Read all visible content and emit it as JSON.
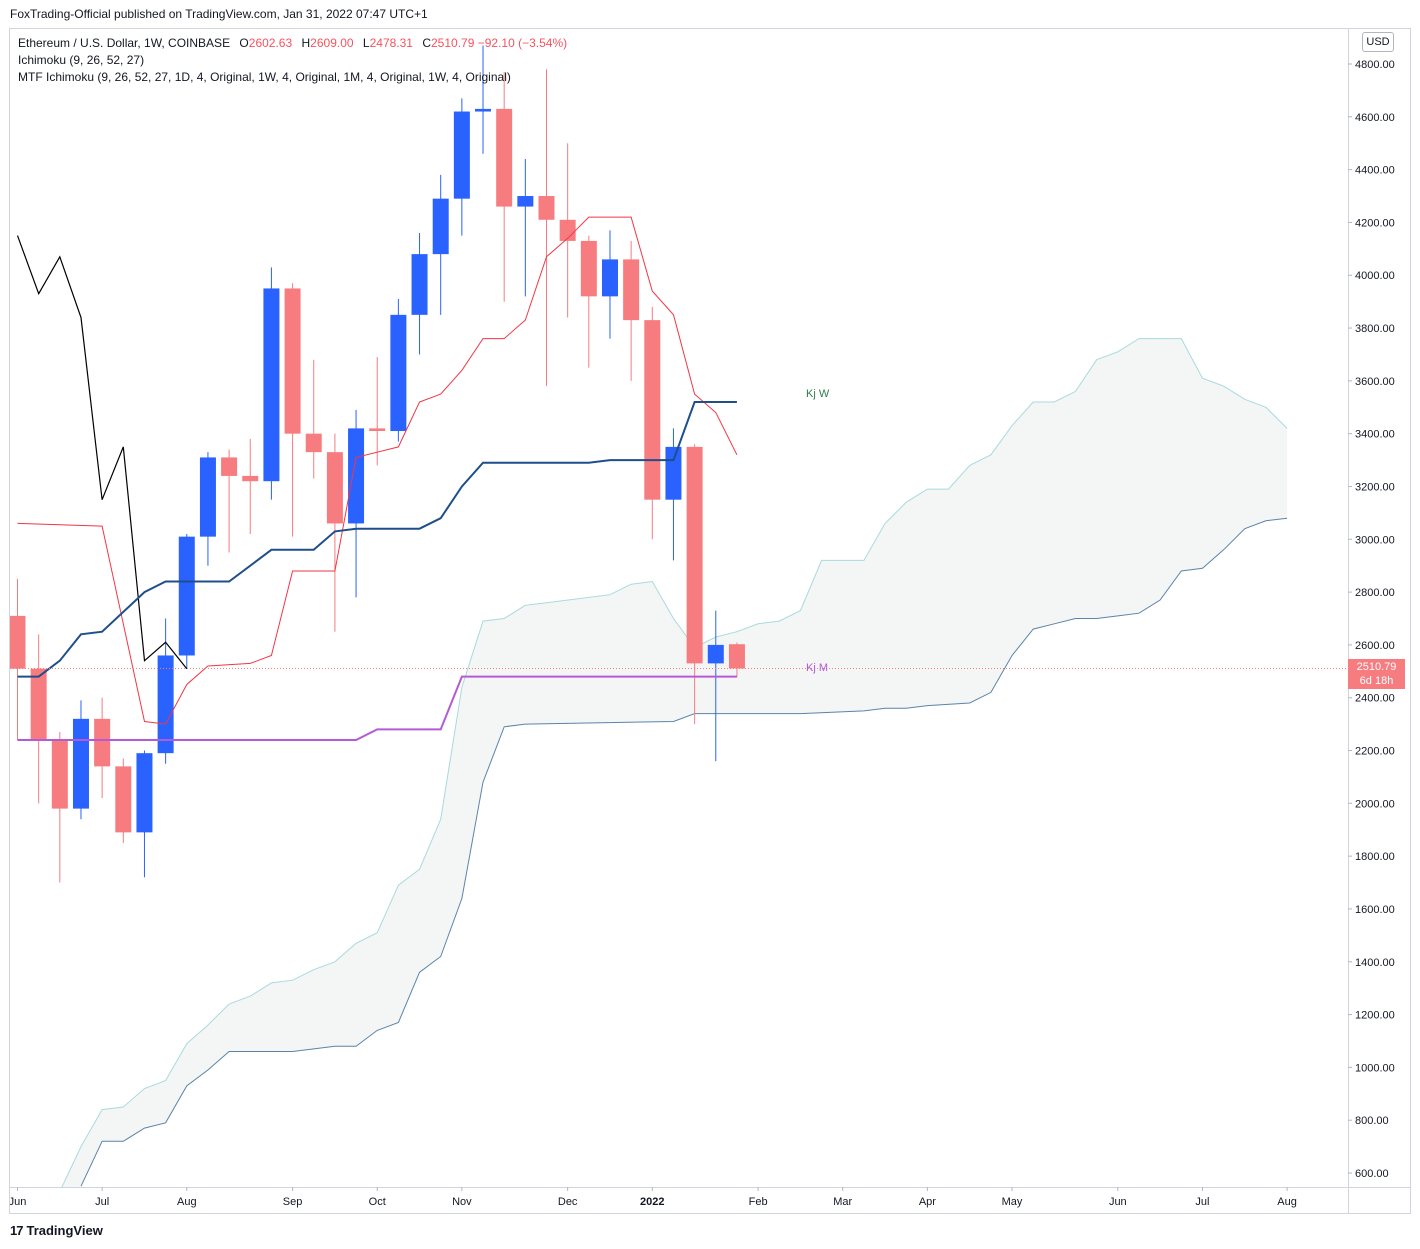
{
  "header": {
    "publish_line": "FoxTrading-Official published on TradingView.com, Jan 31, 2022 07:47 UTC+1"
  },
  "legend": {
    "symbol": "Ethereum / U.S. Dollar, 1W, COINBASE",
    "o_label": "O",
    "o_value": "2602.63",
    "h_label": "H",
    "h_value": "2609.00",
    "l_label": "L",
    "l_value": "2478.31",
    "c_label": "C",
    "c_value": "2510.79",
    "change": "−92.10 (−3.54%)",
    "ichimoku": "Ichimoku (9, 26, 52, 27)",
    "mtf_ichimoku": "MTF Ichimoku (9, 26, 52, 27, 1D, 4, Original, 1W, 4, Original, 1M, 4, Original, 1W, 4, Original)"
  },
  "currency": "USD",
  "last_price": {
    "price": "2510.79",
    "countdown": "6d 18h",
    "value": 2510.79
  },
  "labels": {
    "kj_w": "Kj W",
    "kj_m": "Kj M"
  },
  "footer": {
    "brand": "TradingView",
    "mark": "17"
  },
  "colors": {
    "up": "#2962ff",
    "down": "#f77c80",
    "tenkan": "#f23645",
    "kijun": "#1e4f8a",
    "lagging": "#000000",
    "cloud_upper": "#a8dade",
    "cloud_lower": "#5b84a8",
    "kijun_monthly": "#b45ad6",
    "price_line": "#f77c80"
  },
  "chart_data": {
    "type": "candlestick",
    "y_ticks": [
      600,
      800,
      1000,
      1200,
      1400,
      1600,
      1800,
      2000,
      2200,
      2400,
      2600,
      2800,
      3000,
      3200,
      3400,
      3600,
      3800,
      4000,
      4200,
      4400,
      4600,
      4800
    ],
    "y_tick_labels": [
      "600.00",
      "800.00",
      "1000.00",
      "1200.00",
      "1400.00",
      "1600.00",
      "1800.00",
      "2000.00",
      "2200.00",
      "2400.00",
      "2600.00",
      "2800.00",
      "3000.00",
      "3200.00",
      "3400.00",
      "3600.00",
      "3800.00",
      "4000.00",
      "4200.00",
      "4400.00",
      "4600.00",
      "4800.00"
    ],
    "x_ticks": [
      {
        "label": "Jun",
        "i": 0,
        "bold": false
      },
      {
        "label": "Jul",
        "i": 4,
        "bold": false
      },
      {
        "label": "Aug",
        "i": 8,
        "bold": false
      },
      {
        "label": "Sep",
        "i": 13,
        "bold": false
      },
      {
        "label": "Oct",
        "i": 17,
        "bold": false
      },
      {
        "label": "Nov",
        "i": 21,
        "bold": false
      },
      {
        "label": "Dec",
        "i": 26,
        "bold": false
      },
      {
        "label": "2022",
        "i": 30,
        "bold": true
      },
      {
        "label": "Feb",
        "i": 35,
        "bold": false
      },
      {
        "label": "Mar",
        "i": 39,
        "bold": false
      },
      {
        "label": "Apr",
        "i": 43,
        "bold": false
      },
      {
        "label": "May",
        "i": 47,
        "bold": false
      },
      {
        "label": "Jun",
        "i": 52,
        "bold": false
      },
      {
        "label": "Jul",
        "i": 56,
        "bold": false
      },
      {
        "label": "Aug",
        "i": 60,
        "bold": false
      }
    ],
    "candles": [
      {
        "o": 2710,
        "h": 2850,
        "l": 2240,
        "c": 2510
      },
      {
        "o": 2510,
        "h": 2640,
        "l": 2000,
        "c": 2240
      },
      {
        "o": 2240,
        "h": 2270,
        "l": 1700,
        "c": 1980
      },
      {
        "o": 1980,
        "h": 2390,
        "l": 1940,
        "c": 2320
      },
      {
        "o": 2320,
        "h": 2400,
        "l": 2020,
        "c": 2140
      },
      {
        "o": 2140,
        "h": 2170,
        "l": 1850,
        "c": 1890
      },
      {
        "o": 1890,
        "h": 2200,
        "l": 1720,
        "c": 2190
      },
      {
        "o": 2190,
        "h": 2700,
        "l": 2150,
        "c": 2560
      },
      {
        "o": 2560,
        "h": 3020,
        "l": 2510,
        "c": 3010
      },
      {
        "o": 3010,
        "h": 3330,
        "l": 2900,
        "c": 3310
      },
      {
        "o": 3310,
        "h": 3340,
        "l": 2950,
        "c": 3240
      },
      {
        "o": 3240,
        "h": 3380,
        "l": 3020,
        "c": 3220
      },
      {
        "o": 3220,
        "h": 4030,
        "l": 3150,
        "c": 3950
      },
      {
        "o": 3950,
        "h": 3970,
        "l": 3010,
        "c": 3400
      },
      {
        "o": 3400,
        "h": 3680,
        "l": 3230,
        "c": 3330
      },
      {
        "o": 3330,
        "h": 3400,
        "l": 2650,
        "c": 3060
      },
      {
        "o": 3060,
        "h": 3490,
        "l": 2780,
        "c": 3420
      },
      {
        "o": 3420,
        "h": 3690,
        "l": 3280,
        "c": 3410
      },
      {
        "o": 3410,
        "h": 3910,
        "l": 3370,
        "c": 3850
      },
      {
        "o": 3850,
        "h": 4160,
        "l": 3700,
        "c": 4080
      },
      {
        "o": 4080,
        "h": 4380,
        "l": 3850,
        "c": 4290
      },
      {
        "o": 4290,
        "h": 4670,
        "l": 4150,
        "c": 4620
      },
      {
        "o": 4620,
        "h": 4870,
        "l": 4460,
        "c": 4630
      },
      {
        "o": 4630,
        "h": 4770,
        "l": 3900,
        "c": 4260
      },
      {
        "o": 4260,
        "h": 4440,
        "l": 3920,
        "c": 4300
      },
      {
        "o": 4300,
        "h": 4780,
        "l": 3580,
        "c": 4210
      },
      {
        "o": 4210,
        "h": 4500,
        "l": 3840,
        "c": 4130
      },
      {
        "o": 4130,
        "h": 4150,
        "l": 3650,
        "c": 3920
      },
      {
        "o": 3920,
        "h": 4170,
        "l": 3760,
        "c": 4060
      },
      {
        "o": 4060,
        "h": 4130,
        "l": 3600,
        "c": 3830
      },
      {
        "o": 3830,
        "h": 3880,
        "l": 3000,
        "c": 3150
      },
      {
        "o": 3150,
        "h": 3420,
        "l": 2920,
        "c": 3350
      },
      {
        "o": 3350,
        "h": 3360,
        "l": 2300,
        "c": 2530
      },
      {
        "o": 2530,
        "h": 2730,
        "l": 2160,
        "c": 2600
      },
      {
        "o": 2602.63,
        "h": 2609,
        "l": 2478.31,
        "c": 2510.79
      }
    ],
    "tenkan": [
      [
        0,
        3060
      ],
      [
        4,
        3050
      ],
      [
        6,
        2310
      ],
      [
        7,
        2300
      ],
      [
        8,
        2450
      ],
      [
        9,
        2520
      ],
      [
        11,
        2530
      ],
      [
        12,
        2560
      ],
      [
        13,
        2880
      ],
      [
        15,
        2880
      ],
      [
        16,
        3310
      ],
      [
        18,
        3350
      ],
      [
        19,
        3520
      ],
      [
        20,
        3550
      ],
      [
        21,
        3640
      ],
      [
        22,
        3760
      ],
      [
        23,
        3760
      ],
      [
        24,
        3830
      ],
      [
        25,
        4070
      ],
      [
        26,
        4140
      ],
      [
        27,
        4220
      ],
      [
        29,
        4220
      ],
      [
        30,
        3940
      ],
      [
        31,
        3850
      ],
      [
        32,
        3550
      ],
      [
        33,
        3480
      ],
      [
        34,
        3320
      ]
    ],
    "kijun": [
      [
        0,
        2480
      ],
      [
        1,
        2480
      ],
      [
        2,
        2540
      ],
      [
        3,
        2640
      ],
      [
        4,
        2650
      ],
      [
        6,
        2800
      ],
      [
        7,
        2840
      ],
      [
        10,
        2840
      ],
      [
        12,
        2960
      ],
      [
        14,
        2960
      ],
      [
        15,
        3030
      ],
      [
        16,
        3040
      ],
      [
        19,
        3040
      ],
      [
        20,
        3080
      ],
      [
        21,
        3200
      ],
      [
        22,
        3290
      ],
      [
        27,
        3290
      ],
      [
        28,
        3300
      ],
      [
        31,
        3300
      ],
      [
        32,
        3520
      ],
      [
        34,
        3520
      ]
    ],
    "kijun_monthly": [
      [
        0,
        2240
      ],
      [
        16,
        2240
      ],
      [
        17,
        2280
      ],
      [
        20,
        2280
      ],
      [
        21,
        2480
      ],
      [
        34,
        2480
      ]
    ],
    "lagging": [
      [
        0,
        4150
      ],
      [
        1,
        3930
      ],
      [
        2,
        4070
      ],
      [
        3,
        3840
      ],
      [
        4,
        3150
      ],
      [
        5,
        3350
      ],
      [
        6,
        2540
      ],
      [
        7,
        2610
      ],
      [
        8,
        2510
      ]
    ],
    "cloud_upper": [
      [
        2,
        530
      ],
      [
        3,
        700
      ],
      [
        4,
        840
      ],
      [
        5,
        850
      ],
      [
        6,
        920
      ],
      [
        7,
        950
      ],
      [
        8,
        1090
      ],
      [
        9,
        1160
      ],
      [
        10,
        1240
      ],
      [
        11,
        1270
      ],
      [
        12,
        1320
      ],
      [
        13,
        1330
      ],
      [
        14,
        1370
      ],
      [
        15,
        1400
      ],
      [
        16,
        1470
      ],
      [
        17,
        1510
      ],
      [
        18,
        1690
      ],
      [
        19,
        1750
      ],
      [
        20,
        1940
      ],
      [
        21,
        2440
      ],
      [
        22,
        2690
      ],
      [
        23,
        2700
      ],
      [
        24,
        2750
      ],
      [
        25,
        2760
      ],
      [
        28,
        2790
      ],
      [
        29,
        2830
      ],
      [
        30,
        2840
      ],
      [
        31,
        2700
      ],
      [
        32,
        2590
      ],
      [
        33,
        2630
      ],
      [
        34,
        2650
      ],
      [
        35,
        2680
      ],
      [
        36,
        2690
      ],
      [
        37,
        2730
      ],
      [
        38,
        2920
      ],
      [
        40,
        2920
      ],
      [
        41,
        3060
      ],
      [
        42,
        3140
      ],
      [
        43,
        3190
      ],
      [
        44,
        3190
      ],
      [
        45,
        3280
      ],
      [
        46,
        3320
      ],
      [
        47,
        3430
      ],
      [
        48,
        3520
      ],
      [
        49,
        3520
      ],
      [
        50,
        3560
      ],
      [
        51,
        3680
      ],
      [
        52,
        3710
      ],
      [
        53,
        3760
      ],
      [
        55,
        3760
      ],
      [
        56,
        3610
      ],
      [
        57,
        3580
      ],
      [
        58,
        3530
      ],
      [
        59,
        3500
      ],
      [
        60,
        3420
      ]
    ],
    "cloud_lower": [
      [
        3,
        550
      ],
      [
        4,
        720
      ],
      [
        5,
        720
      ],
      [
        6,
        770
      ],
      [
        7,
        790
      ],
      [
        8,
        930
      ],
      [
        9,
        990
      ],
      [
        10,
        1060
      ],
      [
        13,
        1060
      ],
      [
        14,
        1070
      ],
      [
        15,
        1080
      ],
      [
        16,
        1080
      ],
      [
        17,
        1140
      ],
      [
        18,
        1170
      ],
      [
        19,
        1360
      ],
      [
        20,
        1420
      ],
      [
        21,
        1640
      ],
      [
        22,
        2080
      ],
      [
        23,
        2290
      ],
      [
        24,
        2300
      ],
      [
        31,
        2310
      ],
      [
        32,
        2340
      ],
      [
        37,
        2340
      ],
      [
        40,
        2350
      ],
      [
        41,
        2360
      ],
      [
        42,
        2360
      ],
      [
        43,
        2370
      ],
      [
        45,
        2380
      ],
      [
        46,
        2420
      ],
      [
        47,
        2560
      ],
      [
        48,
        2660
      ],
      [
        49,
        2680
      ],
      [
        50,
        2700
      ],
      [
        51,
        2700
      ],
      [
        52,
        2710
      ],
      [
        53,
        2720
      ],
      [
        54,
        2770
      ],
      [
        55,
        2880
      ],
      [
        56,
        2890
      ],
      [
        57,
        2960
      ],
      [
        58,
        3040
      ],
      [
        59,
        3070
      ],
      [
        60,
        3080
      ]
    ]
  }
}
